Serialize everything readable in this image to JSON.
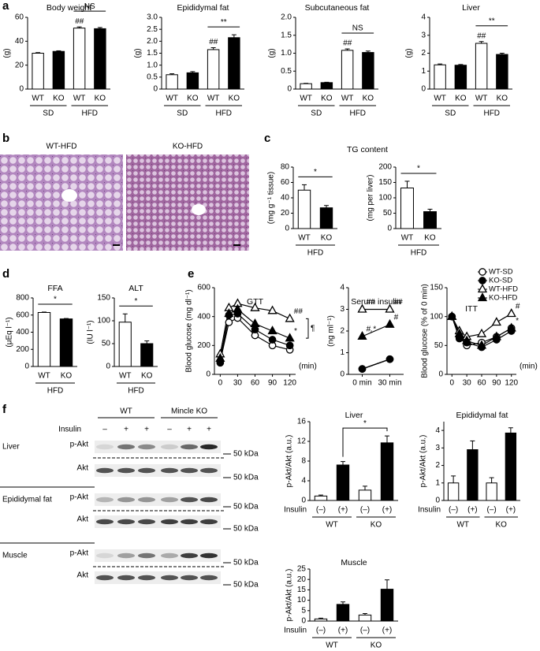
{
  "panel_labels": [
    "a",
    "b",
    "c",
    "d",
    "e",
    "f"
  ],
  "histology": {
    "labels": [
      "WT-HFD",
      "KO-HFD"
    ]
  },
  "blot": {
    "groups": [
      "WT",
      "Mincle KO"
    ],
    "insulin_label": "Insulin",
    "insulin": [
      "–",
      "+",
      "+",
      "–",
      "+",
      "+"
    ],
    "marker": "50 kDa",
    "rows": [
      {
        "tissue": "Liver",
        "bands": [
          "p-Akt",
          "Akt"
        ]
      },
      {
        "tissue": "Epididymal fat",
        "bands": [
          "p-Akt",
          "Akt"
        ]
      },
      {
        "tissue": "Muscle",
        "bands": [
          "p-Akt",
          "Akt"
        ]
      }
    ]
  },
  "chart_data": [
    {
      "type": "bar",
      "title": "Body weight",
      "ylabel": "(g)",
      "categories": [
        "WT",
        "KO",
        "WT",
        "KO"
      ],
      "groups": [
        "SD",
        "HFD"
      ],
      "values": [
        30,
        31.5,
        51,
        50.5
      ],
      "errors": [
        0.5,
        0.5,
        1,
        1
      ],
      "colors": [
        "#ffffff",
        "#000000",
        "#ffffff",
        "#000000"
      ],
      "ylim": [
        0,
        60
      ],
      "yticks": [
        0,
        20,
        40,
        60
      ],
      "markers": [
        null,
        null,
        "##",
        null
      ],
      "brackets": [
        {
          "text": "NS",
          "between": [
            2,
            3
          ]
        }
      ]
    },
    {
      "type": "bar",
      "title": "Epididymal fat",
      "ylabel": "(g)",
      "categories": [
        "WT",
        "KO",
        "WT",
        "KO"
      ],
      "groups": [
        "SD",
        "HFD"
      ],
      "values": [
        0.6,
        0.68,
        1.65,
        2.15
      ],
      "errors": [
        0.04,
        0.05,
        0.08,
        0.12
      ],
      "colors": [
        "#ffffff",
        "#000000",
        "#ffffff",
        "#000000"
      ],
      "ylim": [
        0,
        3
      ],
      "yticks": [
        0,
        0.5,
        {
          "value": 1,
          "label": "1.0"
        },
        1.5,
        {
          "value": 2,
          "label": "2.0"
        },
        2.5,
        {
          "value": 3,
          "label": "3.0"
        }
      ],
      "markers": [
        null,
        null,
        "##",
        null
      ],
      "brackets": [
        {
          "text": "**",
          "between": [
            2,
            3
          ]
        }
      ]
    },
    {
      "type": "bar",
      "title": "Subcutaneous fat",
      "ylabel": "(g)",
      "categories": [
        "WT",
        "KO",
        "WT",
        "KO"
      ],
      "groups": [
        "SD",
        "HFD"
      ],
      "values": [
        0.15,
        0.18,
        1.08,
        1.02
      ],
      "errors": [
        0.01,
        0.01,
        0.04,
        0.04
      ],
      "colors": [
        "#ffffff",
        "#000000",
        "#ffffff",
        "#000000"
      ],
      "ylim": [
        0,
        2
      ],
      "yticks": [
        0,
        0.5,
        {
          "value": 1,
          "label": "1.0"
        },
        1.5,
        {
          "value": 2,
          "label": "2.0"
        }
      ],
      "markers": [
        null,
        null,
        "##",
        null
      ],
      "brackets": [
        {
          "text": "NS",
          "between": [
            2,
            3
          ]
        }
      ]
    },
    {
      "type": "bar",
      "title": "Liver",
      "ylabel": "(g)",
      "categories": [
        "WT",
        "KO",
        "WT",
        "KO"
      ],
      "groups": [
        "SD",
        "HFD"
      ],
      "values": [
        1.35,
        1.33,
        2.55,
        1.93
      ],
      "errors": [
        0.05,
        0.04,
        0.1,
        0.07
      ],
      "colors": [
        "#ffffff",
        "#000000",
        "#ffffff",
        "#000000"
      ],
      "ylim": [
        0,
        4
      ],
      "yticks": [
        0,
        1,
        2,
        3,
        4
      ],
      "markers": [
        null,
        null,
        "##",
        null
      ],
      "brackets": [
        {
          "text": "**",
          "between": [
            2,
            3
          ]
        }
      ]
    },
    {
      "type": "bar",
      "title": "TG content",
      "ylabel": "(mg g⁻¹ tissue)",
      "categories": [
        "WT",
        "KO"
      ],
      "groups": [
        "HFD"
      ],
      "values": [
        50,
        27
      ],
      "errors": [
        7,
        3
      ],
      "colors": [
        "#ffffff",
        "#000000"
      ],
      "ylim": [
        0,
        80
      ],
      "yticks": [
        0,
        20,
        40,
        60,
        80
      ],
      "brackets": [
        {
          "text": "*",
          "between": [
            0,
            1
          ]
        }
      ]
    },
    {
      "type": "bar",
      "ylabel": "(mg per liver)",
      "categories": [
        "WT",
        "KO"
      ],
      "groups": [
        "HFD"
      ],
      "values": [
        132,
        55
      ],
      "errors": [
        22,
        8
      ],
      "colors": [
        "#ffffff",
        "#000000"
      ],
      "ylim": [
        0,
        200
      ],
      "yticks": [
        0,
        50,
        100,
        150,
        200
      ],
      "brackets": [
        {
          "text": "*",
          "between": [
            0,
            1
          ]
        }
      ]
    },
    {
      "type": "bar",
      "title": "FFA",
      "ylabel": "(μEq l⁻¹)",
      "categories": [
        "WT",
        "KO"
      ],
      "groups": [
        "HFD"
      ],
      "values": [
        630,
        555
      ],
      "errors": [
        5,
        5
      ],
      "colors": [
        "#ffffff",
        "#000000"
      ],
      "ylim": [
        0,
        800
      ],
      "yticks": [
        0,
        200,
        400,
        600,
        800
      ],
      "brackets": [
        {
          "text": "*",
          "between": [
            0,
            1
          ]
        }
      ]
    },
    {
      "type": "bar",
      "title": "ALT",
      "ylabel": "(IU l⁻¹)",
      "categories": [
        "WT",
        "KO"
      ],
      "groups": [
        "HFD"
      ],
      "values": [
        97,
        50
      ],
      "errors": [
        18,
        6
      ],
      "colors": [
        "#ffffff",
        "#000000"
      ],
      "ylim": [
        0,
        150
      ],
      "yticks": [
        0,
        50,
        100,
        150
      ],
      "brackets": [
        {
          "text": "*",
          "between": [
            0,
            1
          ]
        }
      ]
    },
    {
      "type": "line",
      "title": "GTT",
      "ylabel": "Blood glucose (mg dl⁻¹)",
      "xlabel": "(min)",
      "x": [
        0,
        15,
        30,
        60,
        90,
        120
      ],
      "xlim": [
        -10,
        130
      ],
      "xticks": [
        0,
        30,
        60,
        90,
        120
      ],
      "ylim": [
        0,
        600
      ],
      "yticks": [
        0,
        200,
        400,
        600
      ],
      "legend": "right",
      "bracket_label": "¶",
      "series": [
        {
          "name": "WT-SD",
          "marker": "open-circle",
          "values": [
            90,
            360,
            390,
            270,
            200,
            170
          ]
        },
        {
          "name": "KO-SD",
          "marker": "filled-circle",
          "values": [
            80,
            410,
            420,
            310,
            240,
            200
          ]
        },
        {
          "name": "WT-HFD",
          "marker": "open-triangle",
          "values": [
            140,
            460,
            490,
            460,
            440,
            385
          ],
          "point_labels": [
            null,
            null,
            null,
            null,
            null,
            "##"
          ]
        },
        {
          "name": "KO-HFD",
          "marker": "filled-triangle",
          "values": [
            110,
            420,
            450,
            350,
            300,
            250
          ],
          "point_labels": [
            null,
            null,
            null,
            null,
            null,
            "*"
          ]
        }
      ]
    },
    {
      "type": "line",
      "title": "Serum insulin",
      "ylabel": "(ng ml⁻¹)",
      "categories": [
        "0 min",
        "30 min"
      ],
      "ylim": [
        0,
        4
      ],
      "yticks": [
        0,
        1,
        2,
        3,
        4
      ],
      "series": [
        {
          "marker": "open-circle",
          "values": [
            0.25,
            0.7
          ]
        },
        {
          "marker": "filled-circle",
          "values": [
            0.25,
            0.7
          ]
        },
        {
          "marker": "open-triangle",
          "values": [
            3.0,
            3.0
          ],
          "point_labels": [
            "##",
            "##"
          ]
        },
        {
          "marker": "filled-triangle",
          "values": [
            1.75,
            2.3
          ],
          "point_labels": [
            "#,*",
            "#"
          ]
        }
      ]
    },
    {
      "type": "line",
      "title": "ITT",
      "ylabel": "Blood glucose (% of 0 min)",
      "xlabel": "(min)",
      "x": [
        0,
        15,
        30,
        60,
        90,
        120
      ],
      "xlim": [
        -10,
        130
      ],
      "xticks": [
        0,
        30,
        60,
        90,
        120
      ],
      "ylim": [
        0,
        150
      ],
      "yticks": [
        0,
        50,
        100,
        150
      ],
      "series": [
        {
          "marker": "open-circle",
          "values": [
            100,
            65,
            50,
            55,
            65,
            80
          ]
        },
        {
          "marker": "filled-circle",
          "values": [
            100,
            62,
            55,
            47,
            60,
            75
          ]
        },
        {
          "marker": "open-triangle",
          "values": [
            100,
            75,
            65,
            70,
            90,
            105
          ],
          "point_labels": [
            null,
            null,
            null,
            null,
            null,
            "#"
          ]
        },
        {
          "marker": "filled-triangle",
          "values": [
            100,
            70,
            58,
            50,
            65,
            80
          ],
          "point_labels": [
            null,
            null,
            null,
            null,
            null,
            "*"
          ]
        }
      ]
    },
    {
      "type": "bar",
      "title": "Liver",
      "ylabel": "p-Akt/Akt (a.u.)",
      "xlabel": "Insulin",
      "categories": [
        "(–)",
        "(+)",
        "(–)",
        "(+)"
      ],
      "groups": [
        "WT",
        "KO"
      ],
      "values": [
        0.9,
        7.2,
        2.1,
        11.7
      ],
      "errors": [
        0.2,
        0.7,
        0.8,
        1.4
      ],
      "colors": [
        "#ffffff",
        "#000000",
        "#ffffff",
        "#000000"
      ],
      "ylim": [
        0,
        16
      ],
      "yticks": [
        0,
        4,
        8,
        12,
        16
      ],
      "brackets": [
        {
          "text": "*",
          "between": [
            1,
            3
          ]
        }
      ]
    },
    {
      "type": "bar",
      "title": "Epididymal fat",
      "ylabel": "p-Akt/Akt (a.u.)",
      "xlabel": "Insulin",
      "categories": [
        "(–)",
        "(+)",
        "(–)",
        "(+)"
      ],
      "groups": [
        "WT",
        "KO"
      ],
      "values": [
        1.0,
        2.9,
        1.0,
        3.85
      ],
      "errors": [
        0.4,
        0.5,
        0.3,
        0.3
      ],
      "colors": [
        "#ffffff",
        "#000000",
        "#ffffff",
        "#000000"
      ],
      "ylim": [
        0,
        4.5
      ],
      "yticks": [
        0,
        1,
        2,
        3,
        4
      ]
    },
    {
      "type": "bar",
      "title": "Muscle",
      "ylabel": "p-Akt/Akt (a.u.)",
      "xlabel": "Insulin",
      "categories": [
        "(–)",
        "(+)",
        "(–)",
        "(+)"
      ],
      "groups": [
        "WT",
        "KO"
      ],
      "values": [
        1.0,
        8.0,
        2.9,
        15.3
      ],
      "errors": [
        0.4,
        1.2,
        0.7,
        4.5
      ],
      "colors": [
        "#ffffff",
        "#000000",
        "#ffffff",
        "#000000"
      ],
      "ylim": [
        0,
        25
      ],
      "yticks": [
        0,
        5,
        10,
        15,
        20,
        25
      ]
    }
  ]
}
